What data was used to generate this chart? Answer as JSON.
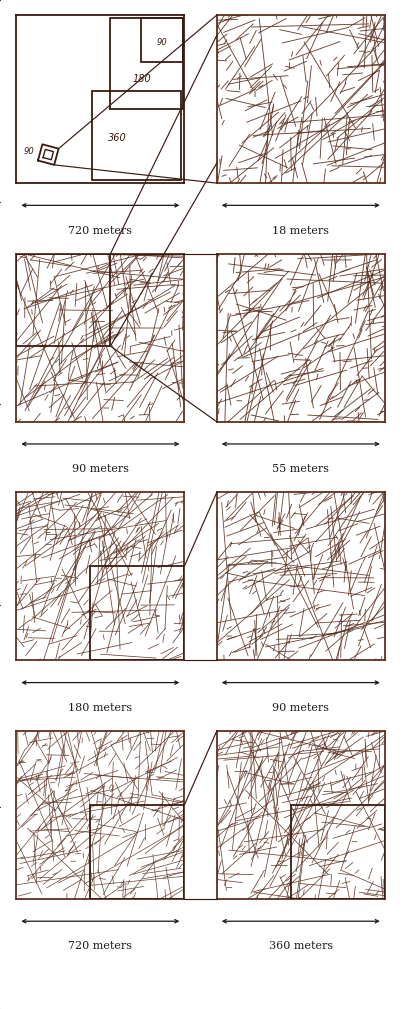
{
  "bg_color": "#ffffff",
  "fracture_color": "#5c3020",
  "line_color": "#3a1a10",
  "arrow_color": "#1a1a1a",
  "text_color": "#1a1a1a",
  "labels": [
    [
      "720 meters",
      "18 meters"
    ],
    [
      "90 meters",
      "55 meters"
    ],
    [
      "180 meters",
      "90 meters"
    ],
    [
      "720 meters",
      "360 meters"
    ]
  ],
  "figsize": [
    4.09,
    10.09
  ],
  "dpi": 100,
  "panel_seeds": [
    10,
    20,
    30,
    40,
    50,
    60,
    70,
    80
  ],
  "panel_n_lines": [
    350,
    280,
    320,
    300,
    340,
    310,
    380,
    360
  ],
  "panel_lw": [
    0.55,
    0.65,
    0.6,
    0.65,
    0.55,
    0.6,
    0.5,
    0.55
  ]
}
